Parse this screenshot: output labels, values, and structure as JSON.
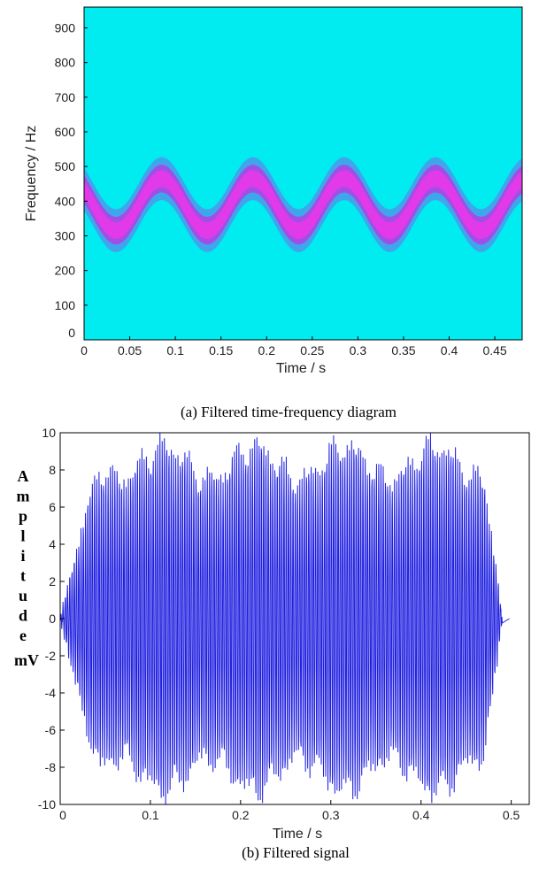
{
  "chart_data": [
    {
      "type": "heatmap",
      "xlabel": "Time / s",
      "ylabel": "Frequency / Hz",
      "caption": "(a) Filtered time-frequency diagram",
      "xlim": [
        0,
        0.48
      ],
      "ylim": [
        0,
        960
      ],
      "x_ticks": [
        0,
        0.05,
        0.1,
        0.15,
        0.2,
        0.25,
        0.3,
        0.35,
        0.4,
        0.45
      ],
      "y_ticks": [
        0,
        100,
        200,
        300,
        400,
        500,
        600,
        700,
        800,
        900
      ],
      "x_tick_labels": [
        "0",
        "0.05",
        "0.1",
        "0.15",
        "0.2",
        "0.25",
        "0.3",
        "0.35",
        "0.4",
        "0.45"
      ],
      "y_tick_labels": [
        "0",
        "100",
        "200",
        "300",
        "400",
        "500",
        "600",
        "700",
        "800",
        "900"
      ],
      "ridge": {
        "center_hz": 390,
        "amplitude_hz": 75,
        "period_s": 0.1,
        "peak_time_s": 0.085
      },
      "colors": {
        "background": "#00ecf0",
        "band_outer": "#3fa6ec",
        "band_mid": "#a04fe6",
        "band_core": "#e23ae8"
      }
    },
    {
      "type": "line",
      "xlabel": "Time / s",
      "ylabel_letters": [
        "A",
        "m",
        "p",
        "l",
        "i",
        "t",
        "u",
        "d",
        "e"
      ],
      "ylabel_unit": "mV",
      "caption": "(b) Filtered signal",
      "xlim": [
        0,
        0.52
      ],
      "ylim": [
        -10,
        10
      ],
      "x_ticks": [
        0,
        0.1,
        0.2,
        0.3,
        0.4,
        0.5
      ],
      "y_ticks": [
        -10,
        -8,
        -6,
        -4,
        -2,
        0,
        2,
        4,
        6,
        8,
        10
      ],
      "x_tick_labels": [
        "0",
        "0.1",
        "0.2",
        "0.3",
        "0.4",
        "0.5"
      ],
      "y_tick_labels": [
        "-10",
        "-8",
        "-6",
        "-4",
        "-2",
        "0",
        "2",
        "4",
        "6",
        "8",
        "10"
      ],
      "signal_duration_s": 0.49,
      "color": "#1f1fe0"
    }
  ]
}
